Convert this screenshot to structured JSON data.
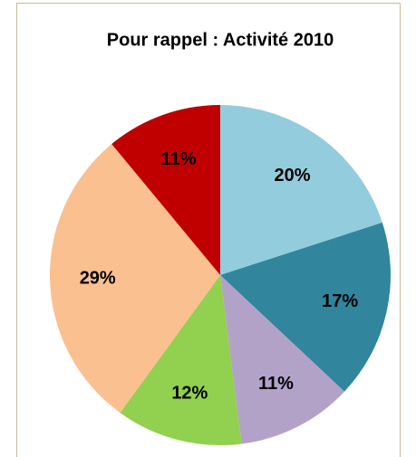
{
  "chart_data": {
    "type": "pie",
    "title": "Pour rappel : Activité 2010",
    "values": [
      20,
      17,
      11,
      12,
      29,
      11
    ],
    "value_labels": [
      "20%",
      "17%",
      "11%",
      "12%",
      "29%",
      "11%"
    ],
    "colors": [
      "#93cddd",
      "#31859c",
      "#b3a2c7",
      "#92d050",
      "#fac090",
      "#c00000"
    ]
  }
}
